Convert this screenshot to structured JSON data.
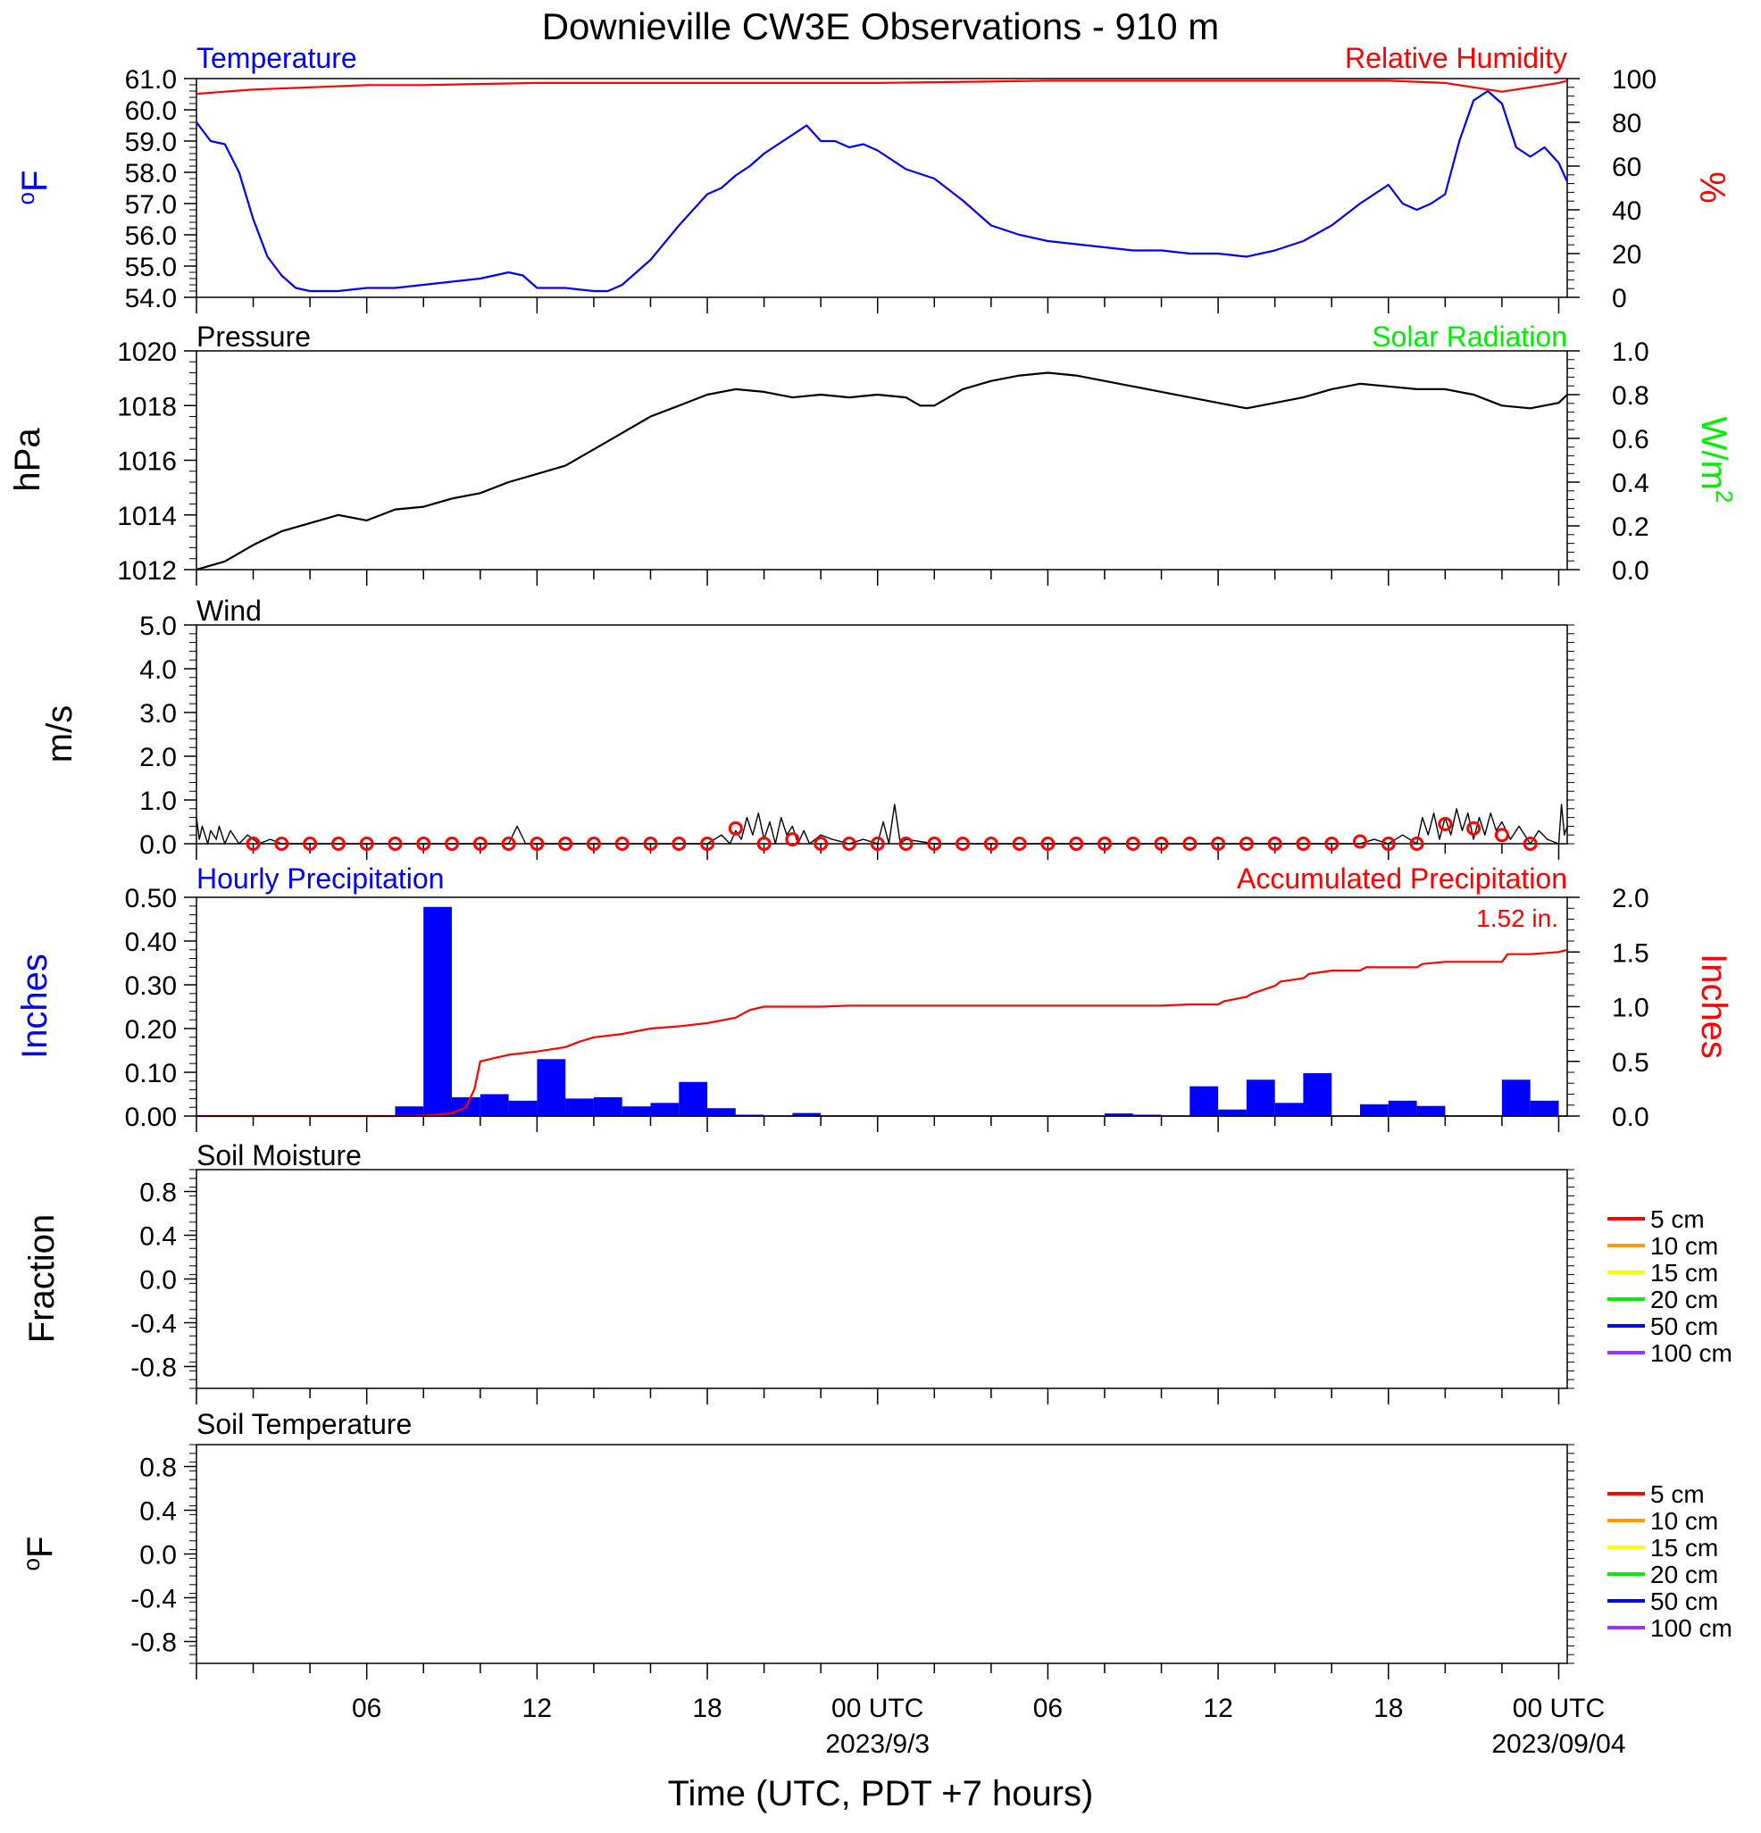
{
  "title": "Downieville CW3E Observations - 910 m",
  "x_axis": {
    "label": "Time (UTC, PDT +7 hours)",
    "ticks": [
      {
        "hour": 6,
        "label": "06",
        "date": ""
      },
      {
        "hour": 12,
        "label": "12",
        "date": ""
      },
      {
        "hour": 18,
        "label": "18",
        "date": ""
      },
      {
        "hour": 24,
        "label": "00 UTC",
        "date": "2023/9/3"
      },
      {
        "hour": 30,
        "label": "06",
        "date": ""
      },
      {
        "hour": 36,
        "label": "12",
        "date": ""
      },
      {
        "hour": 42,
        "label": "18",
        "date": ""
      },
      {
        "hour": 48,
        "label": "00 UTC",
        "date": "2023/09/04"
      }
    ]
  },
  "panels": {
    "temp": {
      "left_title": "Temperature",
      "right_title": "Relative Humidity",
      "left_unit": "oF",
      "right_unit": "%",
      "left_ticks": [
        "61.0",
        "60.0",
        "59.0",
        "58.0",
        "57.0",
        "56.0",
        "55.0",
        "54.0"
      ],
      "right_ticks": [
        "100",
        "80",
        "60",
        "40",
        "20",
        "0"
      ]
    },
    "pres": {
      "left_title": "Pressure",
      "right_title": "Solar Radiation",
      "left_unit": "hPa",
      "right_unit": "W/m2",
      "left_ticks": [
        "1020",
        "1018",
        "1016",
        "1014",
        "1012"
      ],
      "right_ticks": [
        "1.0",
        "0.8",
        "0.6",
        "0.4",
        "0.2",
        "0.0"
      ]
    },
    "wind": {
      "left_title": "Wind",
      "left_unit": "m/s",
      "left_ticks": [
        "5.0",
        "4.0",
        "3.0",
        "2.0",
        "1.0",
        "0.0"
      ]
    },
    "precip": {
      "left_title": "Hourly Precipitation",
      "right_title": "Accumulated Precipitation",
      "left_unit": "Inches",
      "right_unit": "Inches",
      "total_label": "1.52 in.",
      "left_ticks": [
        "0.50",
        "0.40",
        "0.30",
        "0.20",
        "0.10",
        "0.00"
      ],
      "right_ticks": [
        "2.0",
        "1.5",
        "1.0",
        "0.5",
        "0.0"
      ]
    },
    "soilm": {
      "left_title": "Soil Moisture",
      "left_unit": "Fraction",
      "left_ticks": [
        "0.8",
        "0.4",
        "0.0",
        "-0.4",
        "-0.8"
      ],
      "legend": [
        "5 cm",
        "10 cm",
        "15 cm",
        "20 cm",
        "50 cm",
        "100 cm"
      ]
    },
    "soilt": {
      "left_title": "Soil Temperature",
      "left_unit": "oF",
      "left_ticks": [
        "0.8",
        "0.4",
        "0.0",
        "-0.4",
        "-0.8"
      ],
      "legend": [
        "5 cm",
        "10 cm",
        "15 cm",
        "20 cm",
        "50 cm",
        "100 cm"
      ]
    }
  },
  "colors": {
    "temperature": "#0000ff",
    "humidity": "#ff0000",
    "pressure": "#000000",
    "solar": "#00ee00",
    "wind": "#000000",
    "wind_marker": "#ff0000",
    "hourly_precip": "#0000ff",
    "accum_precip": "#ff0000",
    "legend": [
      "#ff0000",
      "#ff9900",
      "#ffff00",
      "#00ee00",
      "#0000ff",
      "#9933ff"
    ]
  },
  "chart_data": [
    {
      "type": "line",
      "panel": "temp",
      "x_unit": "hours since 2023-09-02 00 UTC",
      "ylim_left": [
        54,
        61
      ],
      "ylim_right": [
        0,
        100
      ],
      "series": [
        {
          "name": "Temperature",
          "axis": "left",
          "x": [
            0,
            0.5,
            1,
            1.5,
            2,
            2.5,
            3,
            3.5,
            4,
            4.5,
            5,
            6,
            7,
            8,
            9,
            10,
            10.5,
            11,
            11.5,
            12,
            12.5,
            13,
            14,
            14.5,
            15,
            16,
            17,
            18,
            18.5,
            19,
            19.5,
            20,
            21,
            21.5,
            22,
            22.5,
            23,
            23.5,
            24,
            25,
            26,
            27,
            28,
            29,
            30,
            31,
            32,
            33,
            34,
            35,
            36,
            37,
            38,
            39,
            40,
            41,
            42,
            42.5,
            43,
            43.5,
            44,
            44.5,
            45,
            45.5,
            46,
            46.5,
            47,
            47.5,
            48,
            48.3
          ],
          "y": [
            59.6,
            59.0,
            58.9,
            58.0,
            56.5,
            55.3,
            54.7,
            54.3,
            54.2,
            54.2,
            54.2,
            54.3,
            54.3,
            54.4,
            54.5,
            54.6,
            54.7,
            54.8,
            54.7,
            54.3,
            54.3,
            54.3,
            54.2,
            54.2,
            54.4,
            55.2,
            56.3,
            57.3,
            57.5,
            57.9,
            58.2,
            58.6,
            59.2,
            59.5,
            59.0,
            59.0,
            58.8,
            58.9,
            58.7,
            58.1,
            57.8,
            57.1,
            56.3,
            56.0,
            55.8,
            55.7,
            55.6,
            55.5,
            55.5,
            55.4,
            55.4,
            55.3,
            55.5,
            55.8,
            56.3,
            57.0,
            57.6,
            57.0,
            56.8,
            57.0,
            57.3,
            59.0,
            60.3,
            60.6,
            60.2,
            58.8,
            58.5,
            58.8,
            58.3,
            57.7
          ]
        },
        {
          "name": "Relative Humidity",
          "axis": "right",
          "x": [
            0,
            2,
            4,
            6,
            8,
            12,
            18,
            24,
            30,
            36,
            42,
            44,
            45,
            46,
            47,
            48,
            48.3
          ],
          "y": [
            93,
            95,
            96,
            97,
            97,
            98,
            98,
            98,
            99,
            99,
            99,
            98,
            96,
            94,
            96,
            98,
            99
          ]
        }
      ]
    },
    {
      "type": "line",
      "panel": "pres",
      "ylim_left": [
        1012,
        1020
      ],
      "ylim_right": [
        0,
        1
      ],
      "series": [
        {
          "name": "Pressure",
          "axis": "left",
          "x": [
            0,
            1,
            2,
            3,
            4,
            5,
            6,
            7,
            8,
            9,
            10,
            11,
            12,
            13,
            14,
            15,
            16,
            17,
            18,
            19,
            20,
            21,
            22,
            23,
            24,
            25,
            25.5,
            26,
            27,
            28,
            29,
            30,
            31,
            32,
            33,
            34,
            35,
            36,
            37,
            38,
            39,
            40,
            41,
            42,
            43,
            44,
            45,
            46,
            47,
            48,
            48.3
          ],
          "y": [
            1012.0,
            1012.3,
            1012.9,
            1013.4,
            1013.7,
            1014.0,
            1013.8,
            1014.2,
            1014.3,
            1014.6,
            1014.8,
            1015.2,
            1015.5,
            1015.8,
            1016.4,
            1017.0,
            1017.6,
            1018.0,
            1018.4,
            1018.6,
            1018.5,
            1018.3,
            1018.4,
            1018.3,
            1018.4,
            1018.3,
            1018.0,
            1018.0,
            1018.6,
            1018.9,
            1019.1,
            1019.2,
            1019.1,
            1018.9,
            1018.7,
            1018.5,
            1018.3,
            1018.1,
            1017.9,
            1018.1,
            1018.3,
            1018.6,
            1018.8,
            1018.7,
            1018.6,
            1018.6,
            1018.4,
            1018.0,
            1017.9,
            1018.1,
            1018.4
          ]
        }
      ]
    },
    {
      "type": "line",
      "panel": "wind",
      "ylim": [
        0,
        5
      ],
      "series": [
        {
          "name": "Wind",
          "x": [
            0,
            0.1,
            0.2,
            0.4,
            0.5,
            0.7,
            0.8,
            1.0,
            1.2,
            1.5,
            1.8,
            2.2,
            2.6,
            3,
            5,
            7,
            9,
            11,
            11.3,
            11.6,
            13,
            15,
            17,
            18,
            18.5,
            18.8,
            19,
            19.2,
            19.4,
            19.6,
            19.8,
            20,
            20.2,
            20.4,
            20.6,
            20.8,
            21,
            21.2,
            21.4,
            21.6,
            22,
            22.4,
            23,
            23.5,
            24,
            24.2,
            24.4,
            24.6,
            24.8,
            25,
            26,
            28,
            30,
            32,
            34,
            36,
            38,
            40,
            41,
            41.5,
            42,
            42.5,
            43,
            43.2,
            43.4,
            43.6,
            43.8,
            44,
            44.2,
            44.4,
            44.6,
            44.8,
            45,
            45.2,
            45.4,
            45.6,
            45.8,
            46,
            46.3,
            46.6,
            47,
            47.3,
            47.6,
            48,
            48.1,
            48.2,
            48.3
          ],
          "y": [
            0.6,
            0.1,
            0.4,
            0.0,
            0.3,
            0.1,
            0.4,
            0.0,
            0.3,
            0.0,
            0.2,
            0.0,
            0.1,
            0.0,
            0.0,
            0.0,
            0.0,
            0.0,
            0.4,
            0.0,
            0.0,
            0.0,
            0.0,
            0.0,
            0.2,
            0.0,
            0.3,
            0.1,
            0.6,
            0.2,
            0.7,
            0.1,
            0.5,
            0.0,
            0.6,
            0.2,
            0.4,
            0.0,
            0.3,
            0.0,
            0.2,
            0.1,
            0.0,
            0.1,
            0.0,
            0.5,
            0.0,
            0.9,
            0.0,
            0.1,
            0.0,
            0.0,
            0.0,
            0.0,
            0.0,
            0.0,
            0.0,
            0.0,
            0.0,
            0.1,
            0.0,
            0.2,
            0.0,
            0.6,
            0.2,
            0.7,
            0.1,
            0.6,
            0.2,
            0.8,
            0.3,
            0.7,
            0.1,
            0.6,
            0.2,
            0.7,
            0.3,
            0.5,
            0.1,
            0.4,
            0.0,
            0.3,
            0.1,
            0.0,
            0.9,
            0.2,
            0.4
          ]
        },
        {
          "name": "Hourly Wind",
          "x": [
            2,
            3,
            4,
            5,
            6,
            7,
            8,
            9,
            10,
            11,
            12,
            13,
            14,
            15,
            16,
            17,
            18,
            19,
            20,
            21,
            22,
            23,
            24,
            25,
            26,
            27,
            28,
            29,
            30,
            31,
            32,
            33,
            34,
            35,
            36,
            37,
            38,
            39,
            40,
            41,
            42,
            43,
            44,
            45,
            46,
            47
          ],
          "y": [
            0.0,
            0.0,
            0.0,
            0.0,
            0.0,
            0.0,
            0.0,
            0.0,
            0.0,
            0.0,
            0.0,
            0.0,
            0.0,
            0.0,
            0.0,
            0.0,
            0.0,
            0.35,
            0.0,
            0.1,
            0.0,
            0.0,
            0.0,
            0.0,
            0.0,
            0.0,
            0.0,
            0.0,
            0.0,
            0.0,
            0.0,
            0.0,
            0.0,
            0.0,
            0.0,
            0.0,
            0.0,
            0.0,
            0.0,
            0.05,
            0.0,
            0.0,
            0.45,
            0.35,
            0.2,
            0.0
          ]
        }
      ]
    },
    {
      "type": "bar",
      "panel": "precip",
      "ylim_left": [
        0,
        0.5
      ],
      "ylim_right": [
        0,
        2
      ],
      "series": [
        {
          "name": "Hourly Precipitation",
          "axis": "left",
          "x": [
            7,
            8,
            9,
            10,
            11,
            12,
            13,
            14,
            15,
            16,
            17,
            18,
            19,
            20,
            21,
            22,
            23,
            24,
            25,
            26,
            27,
            28,
            29,
            30,
            31,
            32,
            33,
            34,
            35,
            36,
            37,
            38,
            39,
            40,
            41,
            42,
            43,
            44,
            45,
            46,
            47,
            48
          ],
          "values": [
            0.002,
            0.022,
            0.478,
            0.043,
            0.05,
            0.035,
            0.13,
            0.04,
            0.043,
            0.022,
            0.03,
            0.078,
            0.018,
            0.003,
            0.0,
            0.007,
            0.0,
            0.0,
            0.0,
            0.0,
            0.0,
            0.0,
            0.0,
            0.0,
            0.0,
            0.0,
            0.006,
            0.003,
            0.0,
            0.068,
            0.015,
            0.083,
            0.03,
            0.098,
            0.0,
            0.027,
            0.035,
            0.023,
            0.0,
            0.0,
            0.083,
            0.035
          ]
        },
        {
          "name": "Accumulated Precipitation",
          "axis": "right",
          "type": "line",
          "x": [
            0,
            7,
            8,
            9,
            9.5,
            9.8,
            10,
            10.5,
            11,
            12,
            13,
            13.5,
            14,
            15,
            16,
            17,
            18,
            19,
            19.5,
            20,
            21,
            22,
            23,
            24,
            26,
            28,
            30,
            32,
            34,
            35,
            36,
            36.2,
            37,
            37.2,
            38,
            38.2,
            39,
            39.2,
            40,
            41,
            41.2,
            42,
            43,
            43.2,
            44,
            45,
            46,
            46.2,
            47,
            48,
            48.3
          ],
          "y": [
            0.0,
            0.0,
            0.003,
            0.025,
            0.08,
            0.25,
            0.5,
            0.53,
            0.56,
            0.59,
            0.63,
            0.68,
            0.72,
            0.75,
            0.8,
            0.82,
            0.85,
            0.9,
            0.97,
            1.0,
            1.0,
            1.0,
            1.01,
            1.01,
            1.01,
            1.01,
            1.01,
            1.01,
            1.01,
            1.02,
            1.02,
            1.05,
            1.09,
            1.12,
            1.19,
            1.23,
            1.26,
            1.3,
            1.33,
            1.33,
            1.36,
            1.36,
            1.36,
            1.39,
            1.41,
            1.41,
            1.41,
            1.48,
            1.48,
            1.5,
            1.52
          ]
        }
      ]
    }
  ]
}
